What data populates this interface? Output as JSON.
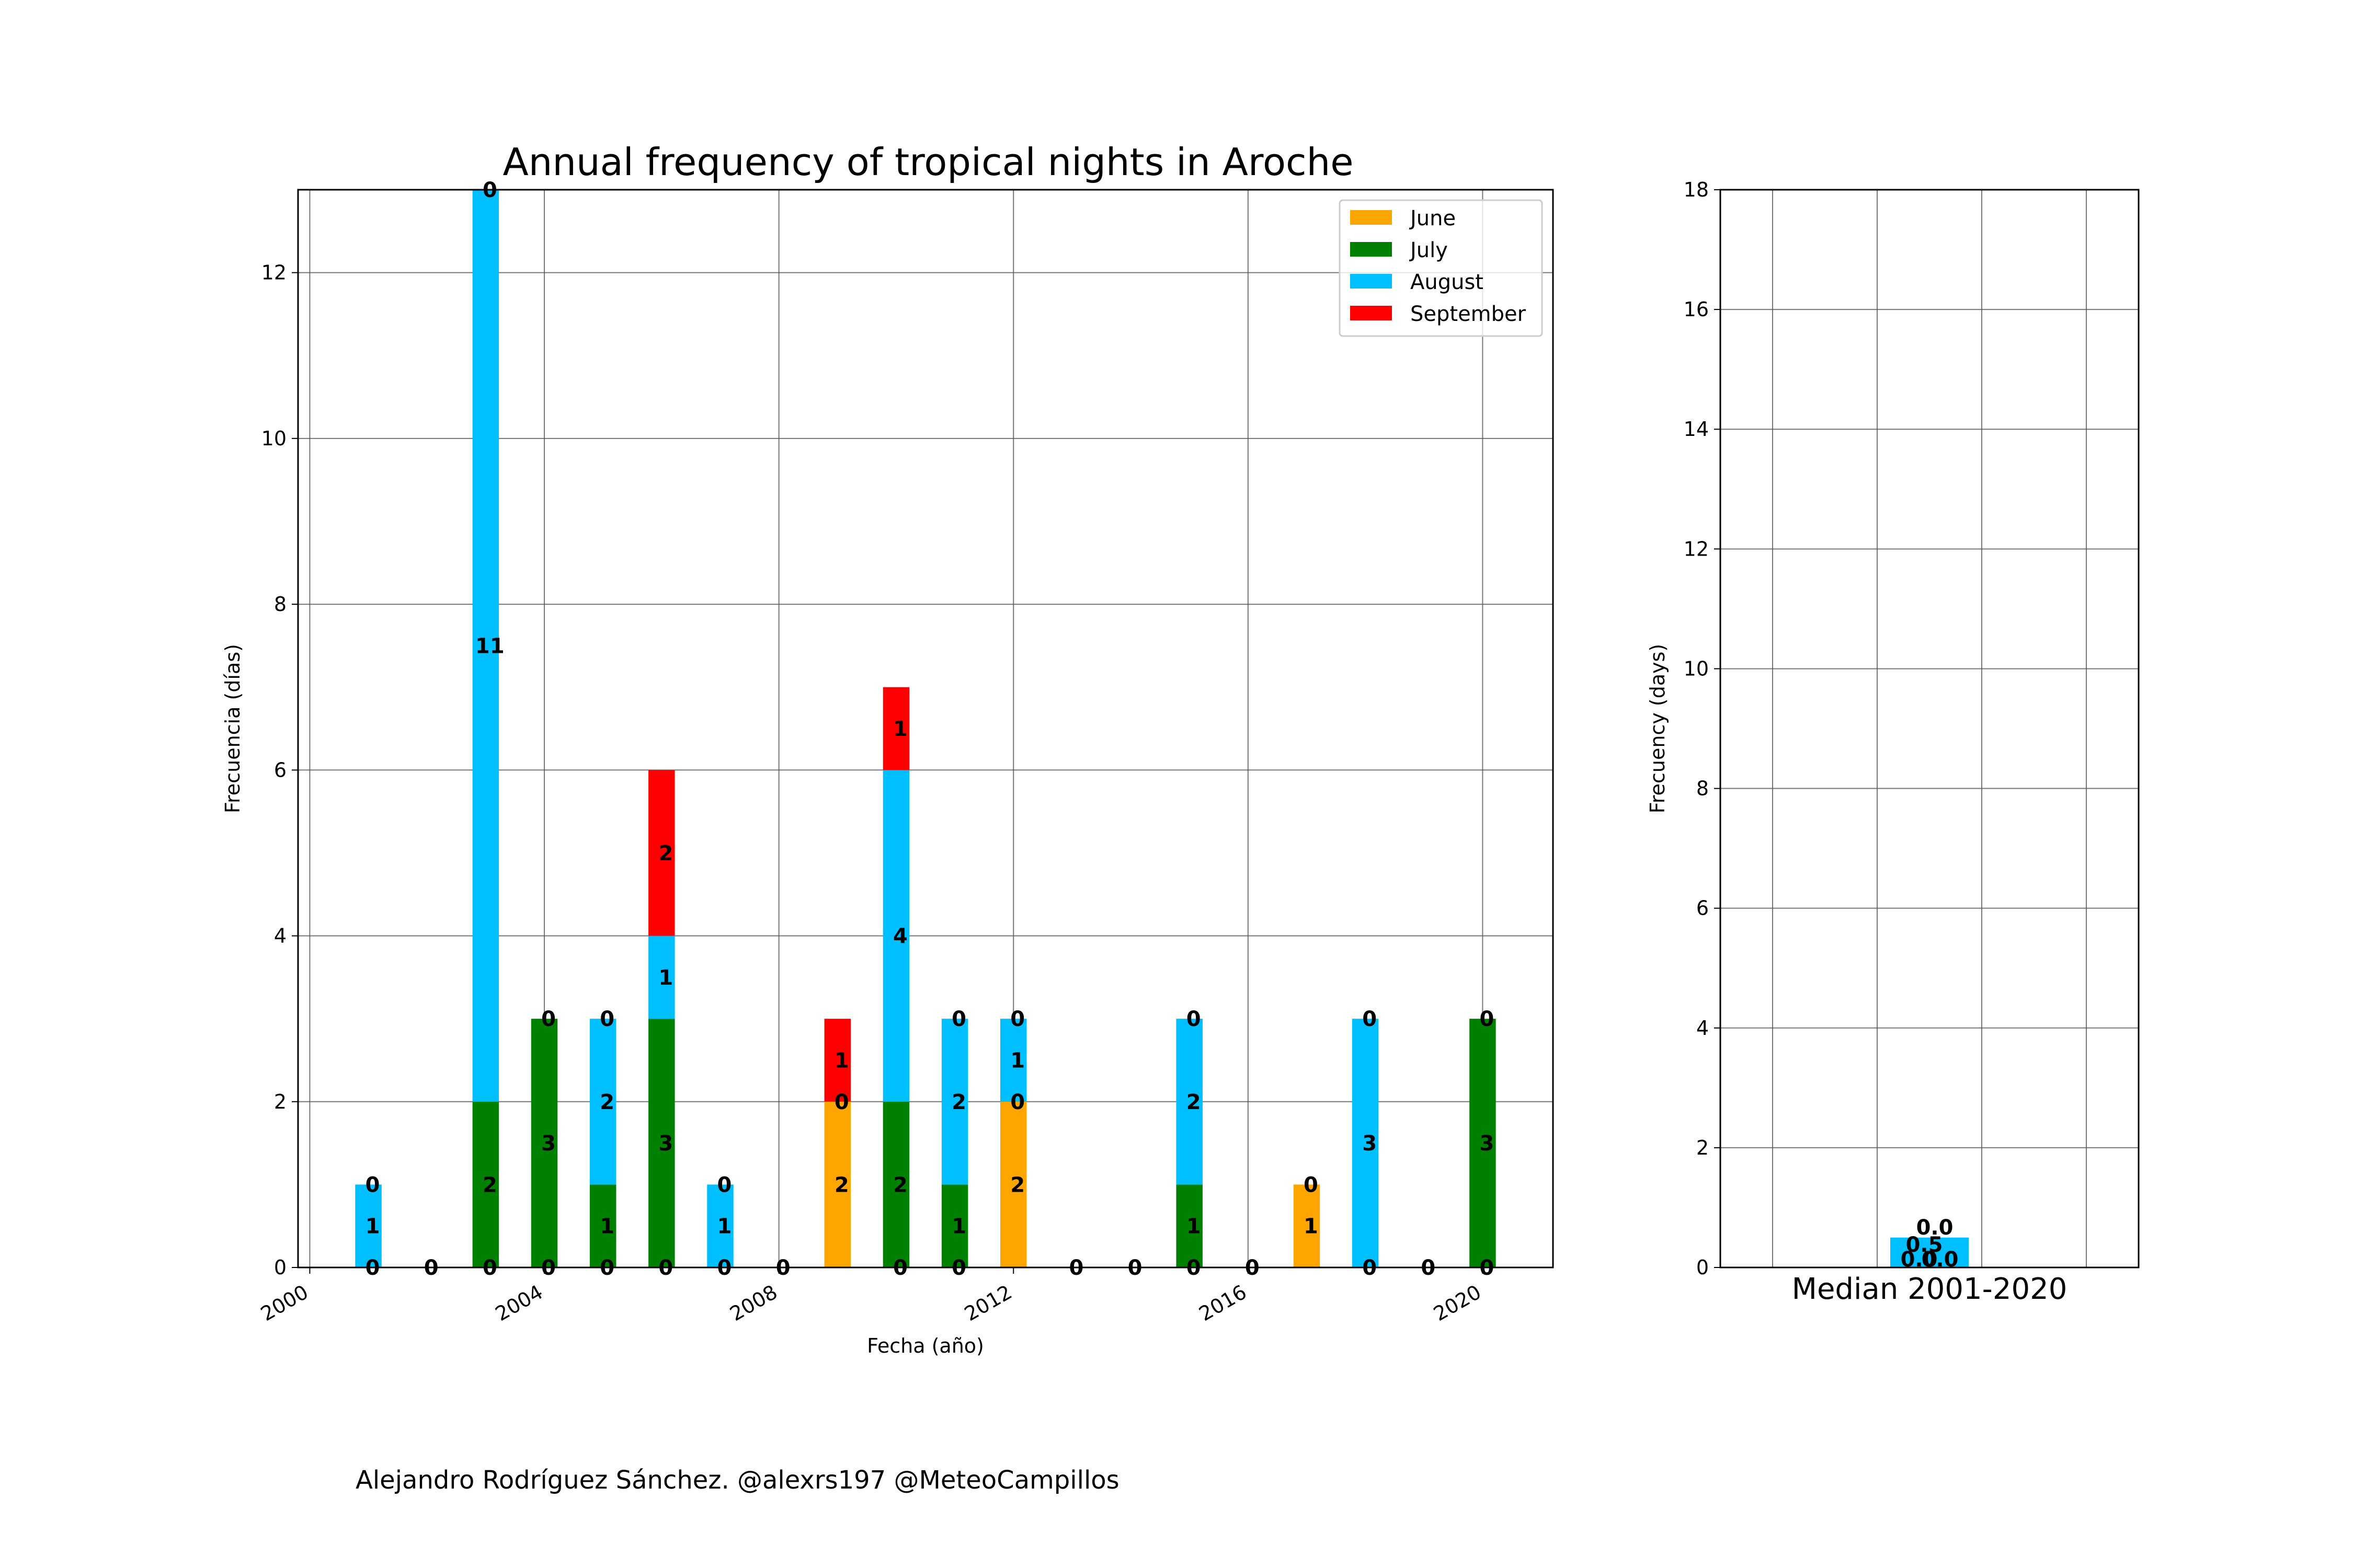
{
  "chart_data": [
    {
      "type": "bar",
      "stacked": true,
      "title": "Annual frequency of tropical nights in Aroche",
      "xlabel": "Fecha (año)",
      "ylabel": "Frecuencia (días)",
      "xlim": [
        1999.8,
        2021.2
      ],
      "ylim": [
        0,
        13
      ],
      "xticks": [
        2000,
        2004,
        2008,
        2012,
        2016,
        2020
      ],
      "yticks": [
        0,
        2,
        4,
        6,
        8,
        10,
        12
      ],
      "grid": true,
      "legend_position": "top-right",
      "x": [
        2001,
        2002,
        2003,
        2004,
        2005,
        2006,
        2007,
        2008,
        2009,
        2010,
        2011,
        2012,
        2013,
        2014,
        2015,
        2016,
        2017,
        2018,
        2019,
        2020
      ],
      "series": [
        {
          "name": "June",
          "color": "#FFA500",
          "values": [
            0,
            0,
            0,
            0,
            0,
            0,
            0,
            0,
            2,
            0,
            0,
            2,
            0,
            0,
            0,
            0,
            1,
            0,
            0,
            0
          ]
        },
        {
          "name": "July",
          "color": "#008000",
          "values": [
            0,
            0,
            2,
            3,
            1,
            3,
            0,
            0,
            0,
            2,
            1,
            0,
            0,
            0,
            1,
            0,
            0,
            0,
            0,
            3
          ]
        },
        {
          "name": "August",
          "color": "#00BFFF",
          "values": [
            1,
            0,
            11,
            0,
            2,
            1,
            1,
            0,
            0,
            4,
            2,
            1,
            0,
            0,
            2,
            0,
            0,
            3,
            0,
            0
          ]
        },
        {
          "name": "September",
          "color": "#FF0000",
          "values": [
            0,
            0,
            0,
            0,
            0,
            2,
            0,
            0,
            1,
            1,
            0,
            0,
            0,
            0,
            0,
            0,
            0,
            0,
            0,
            0
          ]
        }
      ],
      "bar_labels": [
        [
          "0",
          "1",
          "0"
        ],
        [
          "0"
        ],
        [
          "0",
          "2",
          "11",
          "0"
        ],
        [
          "0",
          "3",
          "0"
        ],
        [
          "0",
          "1",
          "2",
          "0"
        ],
        [
          "0",
          "3",
          "1",
          "2"
        ],
        [
          "0",
          "1",
          "0"
        ],
        [
          "0"
        ],
        [
          "2",
          "0",
          "1"
        ],
        [
          "0",
          "2",
          "4",
          "1"
        ],
        [
          "0",
          "1",
          "2",
          "0"
        ],
        [
          "2",
          "0",
          "1",
          "0"
        ],
        [
          "0"
        ],
        [
          "0"
        ],
        [
          "0",
          "1",
          "2",
          "0"
        ],
        [
          "0"
        ],
        [
          "1",
          "0"
        ],
        [
          "0",
          "3",
          "0"
        ],
        [
          "0"
        ],
        [
          "0",
          "3",
          "0"
        ]
      ]
    },
    {
      "type": "bar",
      "stacked": true,
      "categories": [
        "Median 2001-2020"
      ],
      "ylabel": "Frecuency (days)",
      "ylim": [
        0,
        18
      ],
      "yticks": [
        0,
        2,
        4,
        6,
        8,
        10,
        12,
        14,
        16,
        18
      ],
      "grid": true,
      "series": [
        {
          "name": "June",
          "color": "#FFA500",
          "values": [
            0.0
          ]
        },
        {
          "name": "July",
          "color": "#008000",
          "values": [
            0.0
          ]
        },
        {
          "name": "August",
          "color": "#00BFFF",
          "values": [
            0.5
          ]
        },
        {
          "name": "September",
          "color": "#FF0000",
          "values": [
            0.0
          ]
        }
      ],
      "bar_labels": [
        "0.0",
        "0.0",
        "0.5",
        "0.0"
      ]
    }
  ],
  "footer": {
    "credit": "Alejandro Rodríguez Sánchez. @alexrs197 @MeteoCampillos"
  }
}
